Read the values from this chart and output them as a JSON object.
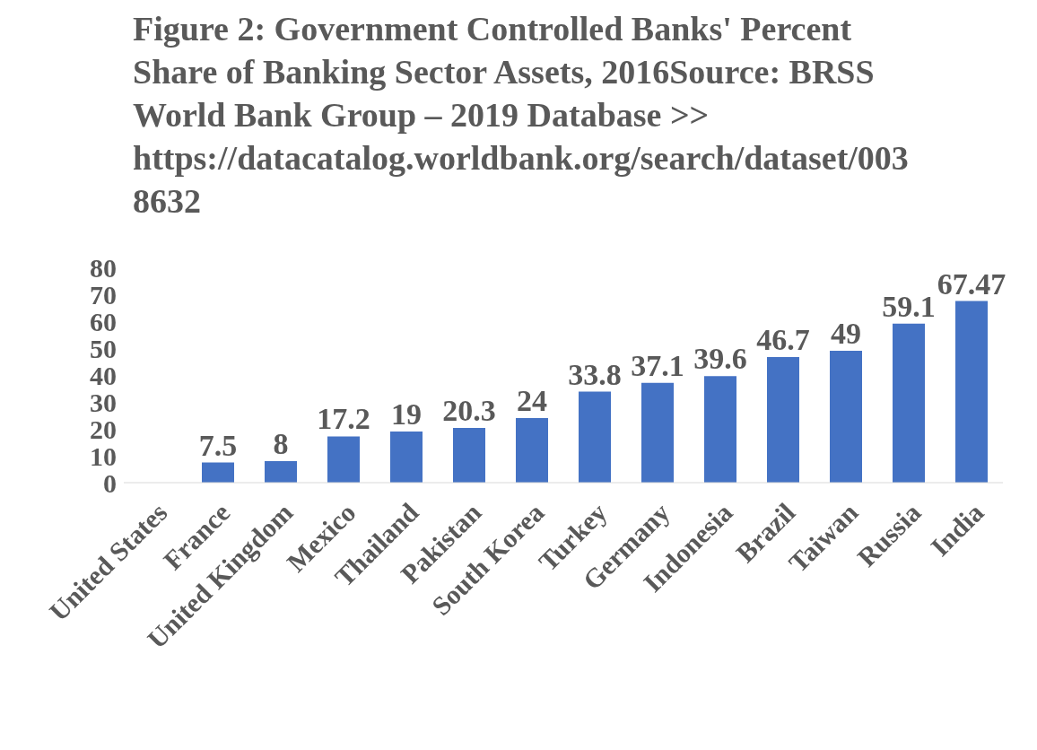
{
  "chart_data": {
    "type": "bar",
    "title": "Figure 2: Government Controlled Banks' Percent Share of Banking Sector Assets, 2016Source: BRSS World Bank Group – 2019 Database >> https://datacatalog.worldbank.org/search/dataset/0038632",
    "categories": [
      "United States",
      "France",
      "United Kingdom",
      "Mexico",
      "Thailand",
      "Pakistan",
      "South Korea",
      "Turkey",
      "Germany",
      "Indonesia",
      "Brazil",
      "Taiwan",
      "Russia",
      "India"
    ],
    "values": [
      0,
      7.5,
      8,
      17.2,
      19,
      20.3,
      24,
      33.8,
      37.1,
      39.6,
      46.7,
      49,
      59.1,
      67.47
    ],
    "value_labels": [
      null,
      "7.5",
      "8",
      "17.2",
      "19",
      "20.3",
      "24",
      "33.8",
      "37.1",
      "39.6",
      "46.7",
      "49",
      "59.1",
      "67.47"
    ],
    "color": "#4472c4",
    "ylim": [
      0,
      80
    ],
    "yticks": [
      0,
      10,
      20,
      30,
      40,
      50,
      60,
      70,
      80
    ],
    "grid": false
  }
}
